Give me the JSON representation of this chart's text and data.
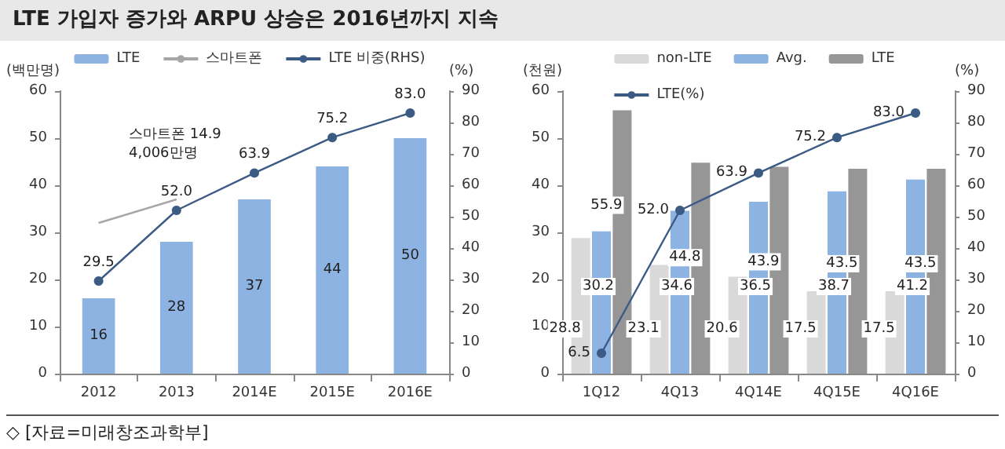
{
  "chart_data": [
    {
      "type": "bar",
      "title": "LTE 가입자 증가와 ARPU 상승은 2016년까지 지속",
      "ylabel": "(백만명)",
      "y2label": "(%)",
      "categories": [
        "2012",
        "2013",
        "2014E",
        "2015E",
        "2016E"
      ],
      "series": [
        {
          "name": "LTE",
          "color": "#8db3e2",
          "values": [
            16,
            28,
            37,
            44,
            50
          ],
          "value_labels": [
            "16",
            "28",
            "37",
            "44",
            "50"
          ]
        },
        {
          "name": "스마트폰",
          "type": "line",
          "color": "#a6a6a6",
          "marker": "none",
          "values": [
            32,
            37,
            null,
            null,
            null
          ]
        },
        {
          "name": "LTE 비중(RHS)",
          "type": "line",
          "axis": "y2",
          "color": "#3b5b84",
          "marker": "circle",
          "values": [
            29.5,
            52.0,
            63.9,
            75.2,
            83.0
          ],
          "value_labels": [
            "29.5",
            "52.0",
            "63.9",
            "75.2",
            "83.0"
          ]
        }
      ],
      "ylim": [
        0,
        60
      ],
      "yticks": [
        0,
        10,
        20,
        30,
        40,
        50,
        60
      ],
      "y2lim": [
        0,
        90
      ],
      "y2ticks": [
        0,
        10,
        20,
        30,
        40,
        50,
        60,
        70,
        80,
        90
      ],
      "annotations": [
        "스마트폰 14.9\n4,006만명"
      ],
      "legend": "top",
      "grid": false
    },
    {
      "type": "bar",
      "ylabel": "(천원)",
      "y2label": "(%)",
      "categories": [
        "1Q12",
        "4Q13",
        "4Q14E",
        "4Q15E",
        "4Q16E"
      ],
      "series": [
        {
          "name": "non-LTE",
          "color": "#d9d9d9",
          "values": [
            28.8,
            23.1,
            20.6,
            17.5,
            17.5
          ],
          "value_labels": [
            "28.8",
            "23.1",
            "20.6",
            "17.5",
            "17.5"
          ]
        },
        {
          "name": "Avg.",
          "color": "#8db3e2",
          "values": [
            30.2,
            34.6,
            36.5,
            38.7,
            41.2
          ],
          "value_labels": [
            "30.2",
            "34.6",
            "36.5",
            "38.7",
            "41.2"
          ]
        },
        {
          "name": "LTE",
          "color": "#969696",
          "values": [
            55.9,
            44.8,
            43.9,
            43.5,
            43.5
          ],
          "value_labels": [
            "55.9",
            "44.8",
            "43.9",
            "43.5",
            "43.5"
          ]
        },
        {
          "name": "LTE(%)",
          "type": "line",
          "axis": "y2",
          "color": "#3b5b84",
          "marker": "circle",
          "values": [
            6.5,
            52.0,
            63.9,
            75.2,
            83.0
          ],
          "value_labels": [
            "6.5",
            "52.0",
            "63.9",
            "75.2",
            "83.0"
          ]
        }
      ],
      "ylim": [
        0,
        60
      ],
      "yticks": [
        0,
        10,
        20,
        30,
        40,
        50,
        60
      ],
      "y2lim": [
        0,
        90
      ],
      "y2ticks": [
        0,
        10,
        20,
        30,
        40,
        50,
        60,
        70,
        80,
        90
      ],
      "annotations": [
        "◇ [자료=미래창조과학부]"
      ],
      "legend": "top",
      "grid": false
    }
  ]
}
